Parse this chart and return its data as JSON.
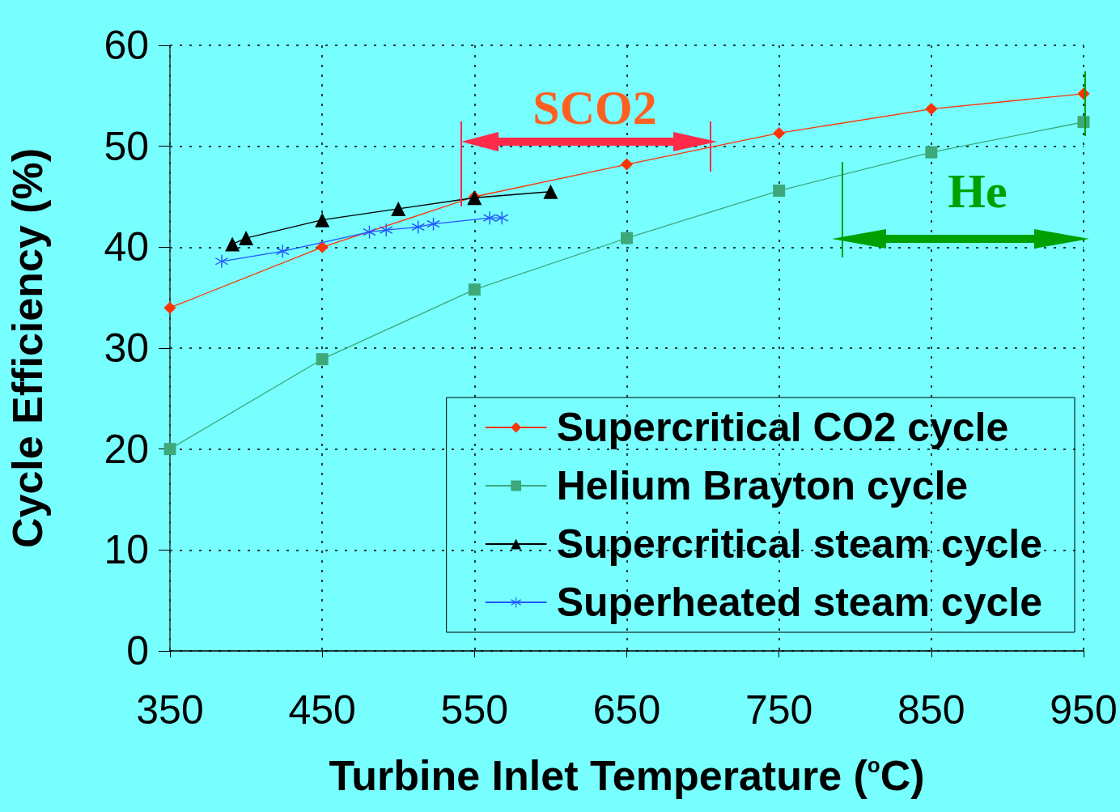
{
  "chart_data": {
    "type": "line",
    "xlabel": "Turbine Inlet Temperature ($^{o}$C)",
    "ylabel": "Cycle Efficiency (%)",
    "xlim": [
      350,
      950
    ],
    "xticks": [
      350,
      450,
      550,
      650,
      750,
      850,
      950
    ],
    "ylim": [
      0,
      60
    ],
    "yticks": [
      0,
      10,
      20,
      30,
      40,
      50,
      60
    ],
    "grid": true,
    "legend": "bottom right",
    "line_style": "solid",
    "series": [
      {
        "name": "Supercritical CO2 cycle",
        "color": "#ff3300",
        "marker": "diamond",
        "x": [
          350,
          450,
          550,
          650,
          750,
          850,
          950
        ],
        "values": [
          34,
          40,
          45,
          48.2,
          51.3,
          53.7,
          55.2
        ]
      },
      {
        "name": "Helium Brayton cycle",
        "color": "#3ea87a",
        "marker": "square",
        "x": [
          350,
          450,
          550,
          650,
          750,
          850,
          950
        ],
        "values": [
          20,
          28.9,
          35.8,
          40.9,
          45.6,
          49.4,
          52.4
        ]
      },
      {
        "name": "Supercritical steam cycle",
        "color": "#000000",
        "marker": "triangle",
        "x": [
          391,
          400,
          450,
          500,
          550,
          600
        ],
        "values": [
          40.3,
          40.9,
          42.7,
          43.8,
          44.9,
          45.5
        ]
      },
      {
        "name": "Superheated steam cycle",
        "color": "#2255ff",
        "marker": "cross",
        "x": [
          384,
          424,
          481,
          492,
          513,
          523,
          560,
          568
        ],
        "values": [
          38.6,
          39.6,
          41.5,
          41.7,
          42.0,
          42.3,
          42.9,
          42.9
        ]
      }
    ],
    "annotations": [
      "SCO2",
      "He"
    ]
  }
}
